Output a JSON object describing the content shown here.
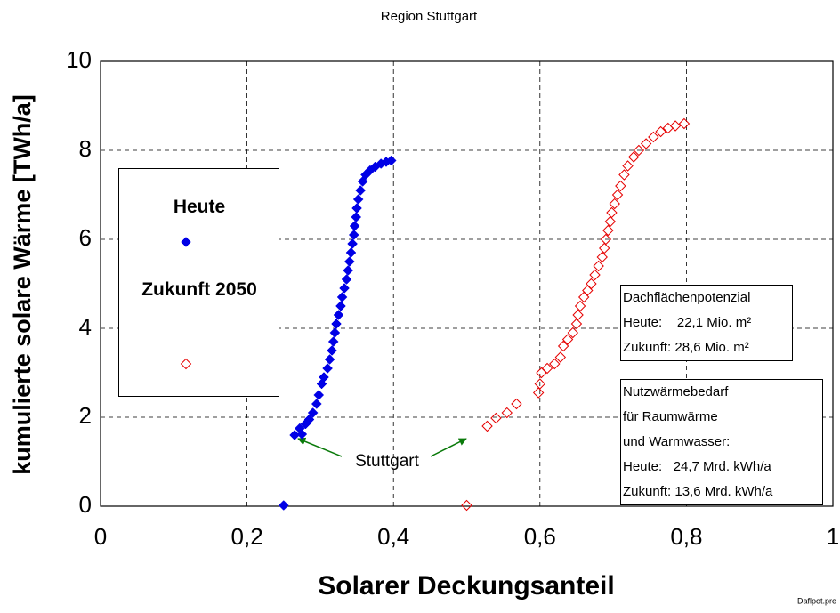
{
  "chart_data": {
    "type": "scatter",
    "title": "Region Stuttgart",
    "xlabel": "Solarer Deckungsanteil",
    "ylabel": "kumulierte solare Wärme [TWh/a]",
    "annotation": "Stuttgart",
    "footer": "Daflpot.pre",
    "xlim": [
      0,
      1
    ],
    "ylim": [
      0,
      10
    ],
    "xticks": [
      0,
      {
        "value": 0.2,
        "label": "0,2"
      },
      {
        "value": 0.4,
        "label": "0,4"
      },
      {
        "value": 0.6,
        "label": "0,6"
      },
      {
        "value": 0.8,
        "label": "0,8"
      },
      1
    ],
    "yticks": [
      0,
      2,
      4,
      6,
      8,
      10
    ],
    "grid": true,
    "marker": "diamond",
    "series": [
      {
        "name": "Heute",
        "color": "#0000e6",
        "filled": true,
        "x": [
          0.25,
          0.265,
          0.275,
          0.272,
          0.28,
          0.285,
          0.29,
          0.295,
          0.298,
          0.302,
          0.305,
          0.31,
          0.313,
          0.316,
          0.318,
          0.32,
          0.322,
          0.325,
          0.328,
          0.33,
          0.333,
          0.336,
          0.338,
          0.34,
          0.342,
          0.344,
          0.346,
          0.347,
          0.349,
          0.35,
          0.352,
          0.355,
          0.358,
          0.362,
          0.368,
          0.375,
          0.383,
          0.39,
          0.397
        ],
        "values": [
          0.02,
          1.6,
          1.62,
          1.75,
          1.85,
          1.95,
          2.1,
          2.3,
          2.5,
          2.75,
          2.9,
          3.1,
          3.3,
          3.5,
          3.7,
          3.9,
          4.1,
          4.3,
          4.5,
          4.7,
          4.9,
          5.1,
          5.3,
          5.5,
          5.7,
          5.9,
          6.1,
          6.3,
          6.5,
          6.7,
          6.9,
          7.1,
          7.3,
          7.45,
          7.55,
          7.63,
          7.7,
          7.74,
          7.77
        ]
      },
      {
        "name": "Zukunft 2050",
        "color": "#e60000",
        "filled": false,
        "x": [
          0.5,
          0.528,
          0.54,
          0.555,
          0.568,
          0.598,
          0.6,
          0.602,
          0.61,
          0.62,
          0.628,
          0.632,
          0.638,
          0.645,
          0.65,
          0.652,
          0.655,
          0.66,
          0.665,
          0.67,
          0.675,
          0.68,
          0.685,
          0.688,
          0.69,
          0.693,
          0.696,
          0.698,
          0.702,
          0.706,
          0.71,
          0.715,
          0.72,
          0.728,
          0.735,
          0.745,
          0.755,
          0.765,
          0.775,
          0.785,
          0.797
        ],
        "values": [
          0.02,
          1.8,
          1.98,
          2.1,
          2.3,
          2.55,
          2.75,
          3.0,
          3.1,
          3.2,
          3.35,
          3.6,
          3.75,
          3.9,
          4.1,
          4.3,
          4.5,
          4.7,
          4.85,
          5.0,
          5.2,
          5.4,
          5.6,
          5.8,
          6.0,
          6.2,
          6.4,
          6.6,
          6.8,
          7.0,
          7.2,
          7.45,
          7.65,
          7.85,
          8.0,
          8.15,
          8.3,
          8.42,
          8.5,
          8.55,
          8.6
        ]
      }
    ]
  },
  "info_boxes": [
    [
      "Dachflächenpotenzial",
      "Heute:    22,1 Mio. m²",
      "Zukunft: 28,6 Mio. m²"
    ],
    [
      "Nutzwärmebedarf",
      "für Raumwärme",
      "und Warmwasser:",
      "Heute:   24,7 Mrd. kWh/a",
      "Zukunft: 13,6 Mrd. kWh/a"
    ]
  ]
}
